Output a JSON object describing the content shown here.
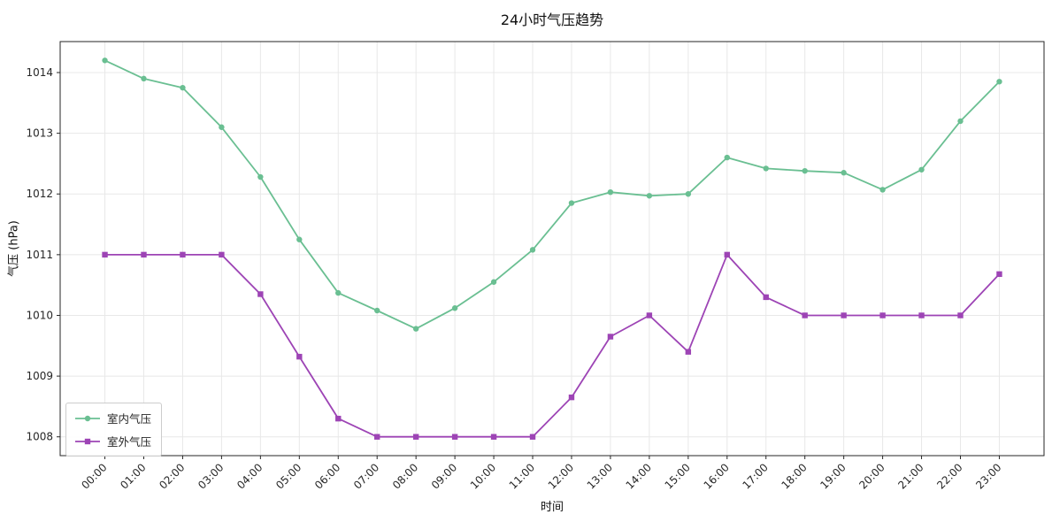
{
  "chart_data": {
    "type": "line",
    "title": "24小时气压趋势",
    "xlabel": "时间",
    "ylabel": "气压 (hPa)",
    "categories": [
      "00:00",
      "01:00",
      "02:00",
      "03:00",
      "04:00",
      "05:00",
      "06:00",
      "07:00",
      "08:00",
      "09:00",
      "10:00",
      "11:00",
      "12:00",
      "13:00",
      "14:00",
      "15:00",
      "16:00",
      "17:00",
      "18:00",
      "19:00",
      "20:00",
      "21:00",
      "22:00",
      "23:00"
    ],
    "series": [
      {
        "name": "室内气压",
        "color": "#6abf92",
        "marker": "circle",
        "values": [
          1014.2,
          1013.9,
          1013.75,
          1013.1,
          1012.28,
          1011.25,
          1010.37,
          1010.08,
          1009.78,
          1010.12,
          1010.55,
          1011.08,
          1011.85,
          1012.03,
          1011.97,
          1012.0,
          1012.6,
          1012.42,
          1012.38,
          1012.35,
          1012.07,
          1012.4,
          1013.2,
          1013.85
        ]
      },
      {
        "name": "室外气压",
        "color": "#9d44b5",
        "marker": "square",
        "values": [
          1011,
          1011,
          1011,
          1011,
          1010.35,
          1009.32,
          1008.3,
          1008,
          1008,
          1008,
          1008,
          1008,
          1008.65,
          1009.65,
          1010,
          1009.4,
          1011,
          1010.3,
          1010,
          1010,
          1010,
          1010,
          1010,
          1010.68
        ]
      }
    ],
    "ylim": [
      1007.69,
      1014.51
    ],
    "yticks": [
      1008,
      1009,
      1010,
      1011,
      1012,
      1013,
      1014
    ],
    "grid": true,
    "grid_color": "#e8e8e8",
    "axis_color": "#262626",
    "legend_position": "lower left"
  }
}
